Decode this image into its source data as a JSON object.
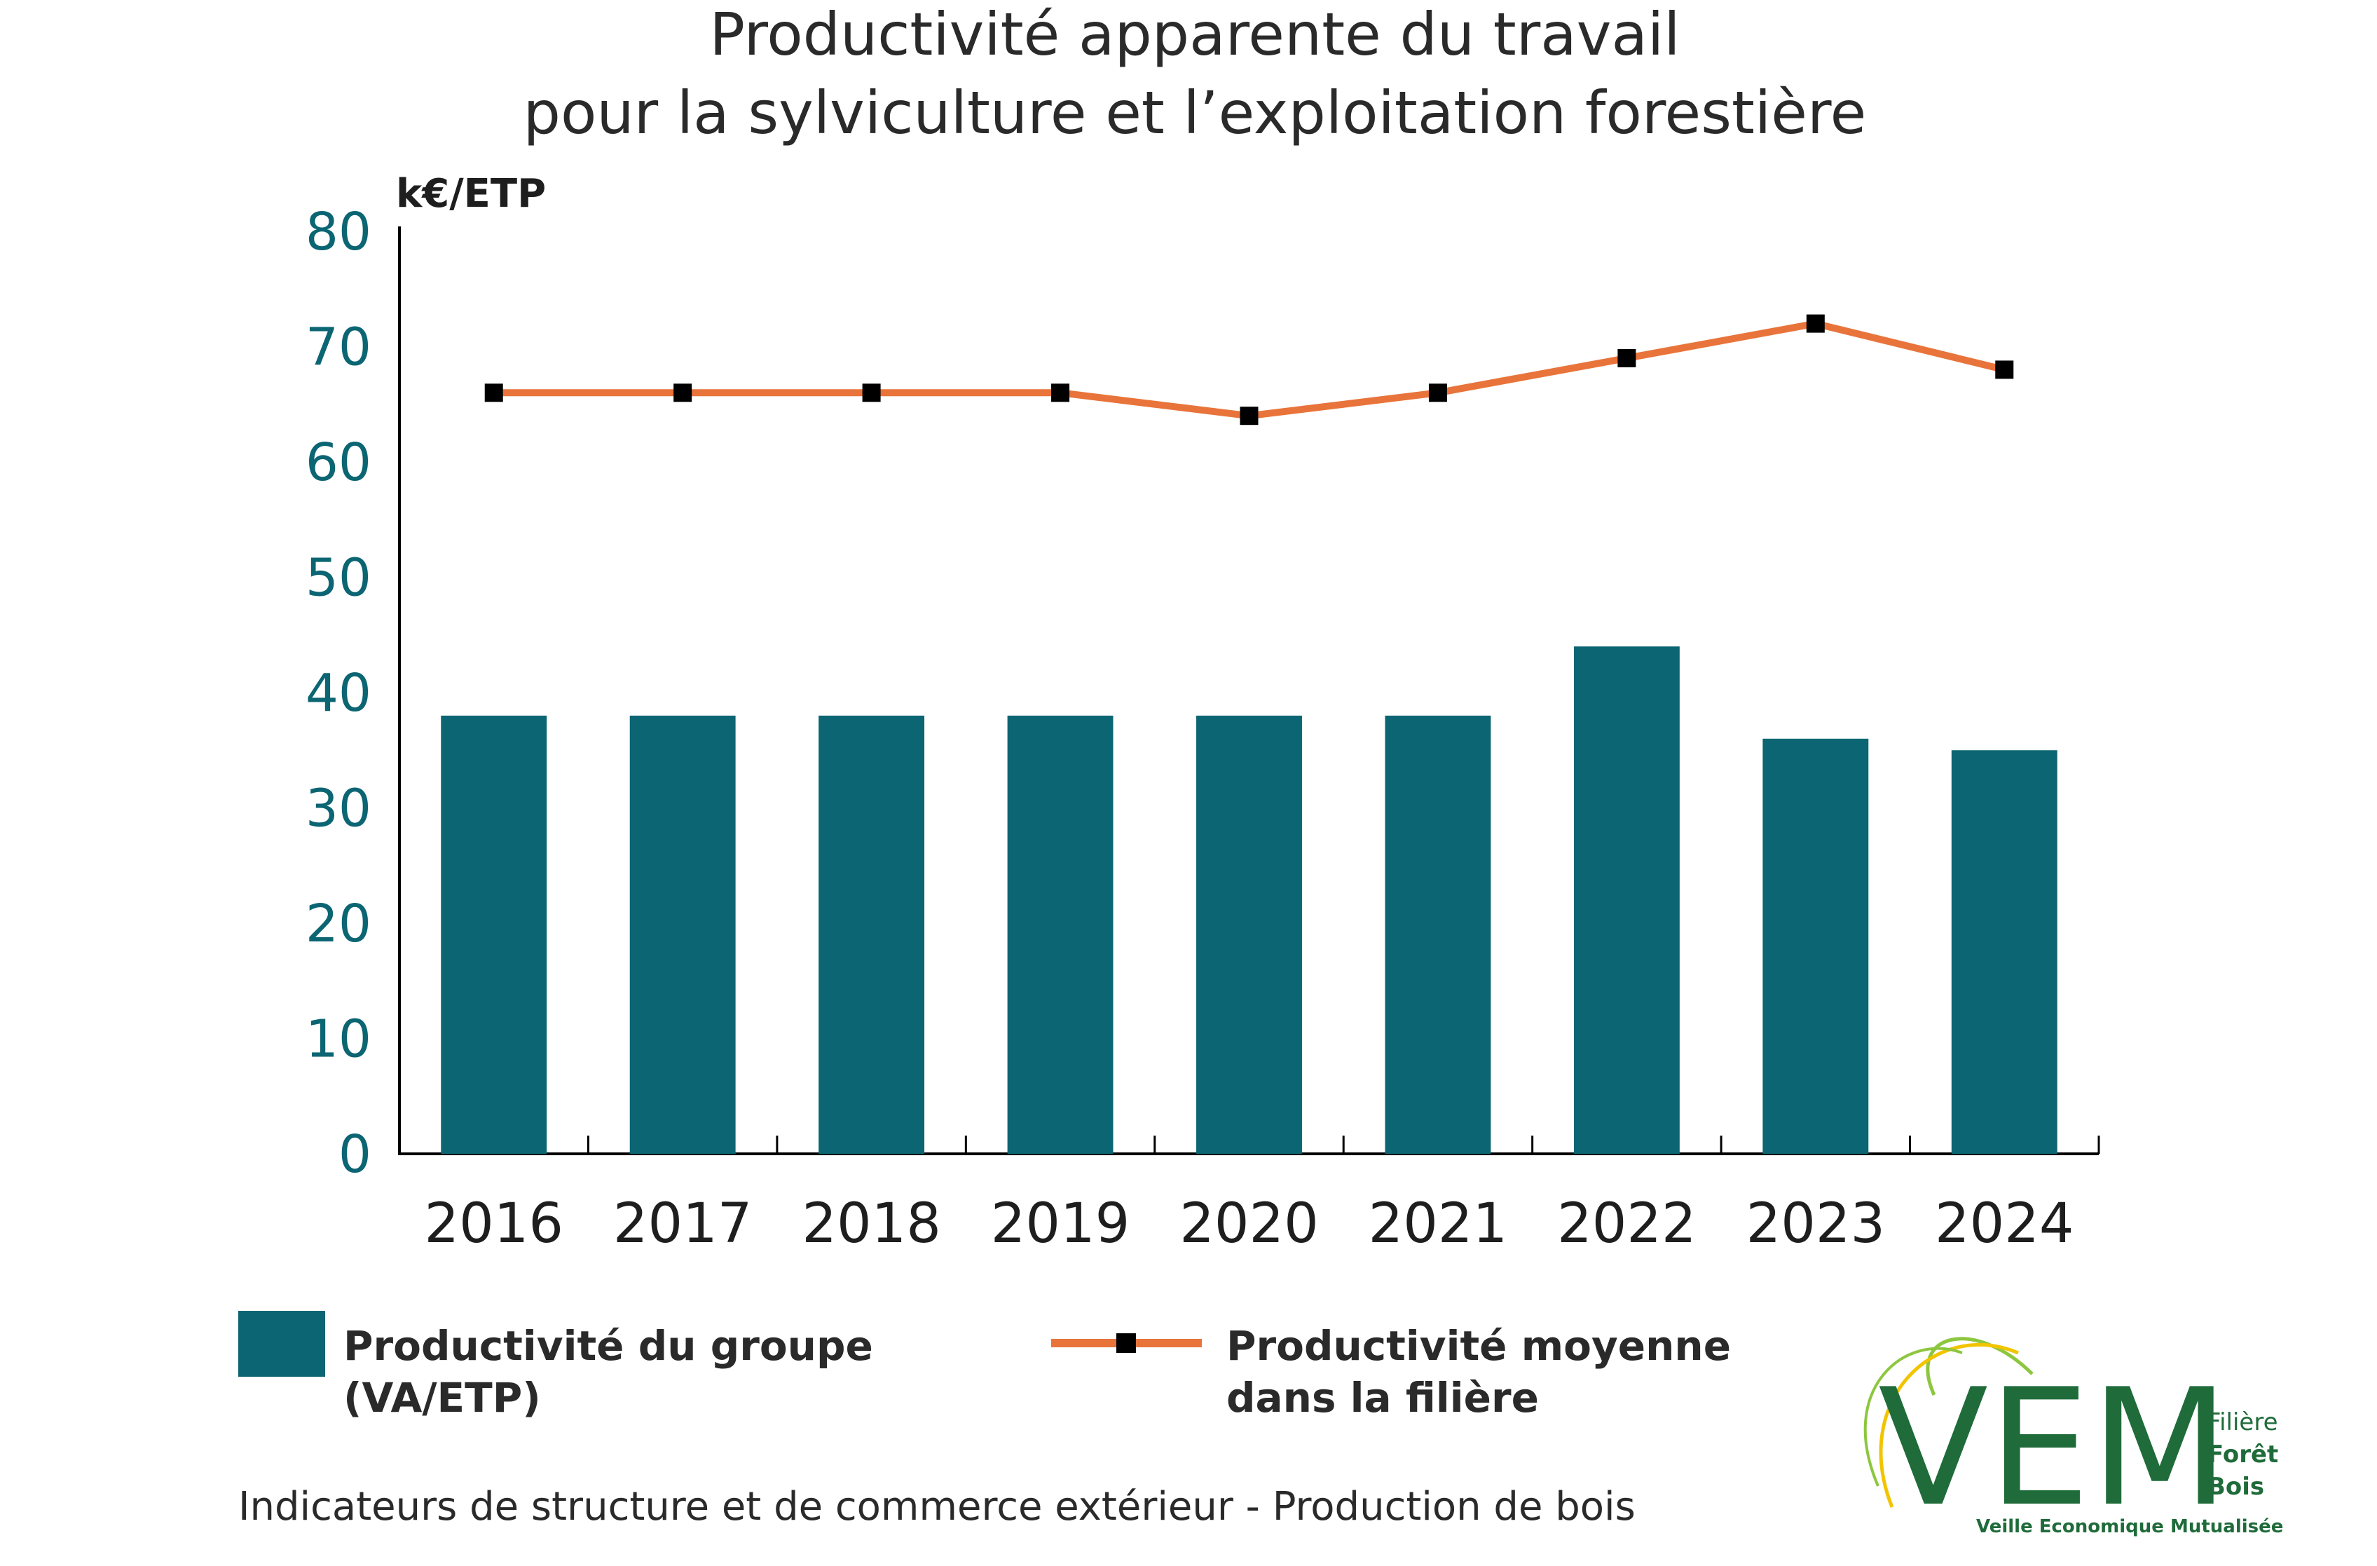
{
  "chart_data": {
    "type": "bar",
    "title_lines": [
      "Productivité apparente du travail",
      "pour la sylviculture et l’exploitation forestière"
    ],
    "unit_label": "k€/ETP",
    "categories": [
      "2016",
      "2017",
      "2018",
      "2019",
      "2020",
      "2021",
      "2022",
      "2023",
      "2024"
    ],
    "series": [
      {
        "name_lines": [
          "Productivité du groupe",
          "(VA/ETP)"
        ],
        "kind": "bar",
        "color": "#0b6572",
        "values": [
          38,
          38,
          38,
          38,
          38,
          38,
          44,
          36,
          35
        ]
      },
      {
        "name_lines": [
          "Productivité moyenne",
          "dans la filière"
        ],
        "kind": "line",
        "color": "#e8743b",
        "marker_color": "#000000",
        "values": [
          66,
          66,
          66,
          66,
          64,
          66,
          69,
          72,
          68
        ]
      }
    ],
    "ylim": [
      0,
      80
    ],
    "yticks": [
      "0",
      "10",
      "20",
      "30",
      "40",
      "50",
      "60",
      "70",
      "80"
    ],
    "grid": false,
    "legend_position": "bottom"
  },
  "footer": "Indicateurs de structure et de commerce extérieur - Production de bois",
  "logo": {
    "letters": "VEM",
    "line1": "Filière",
    "line2": "Forêt",
    "line3": "Bois",
    "tagline": "Veille Economique Mutualisée"
  }
}
